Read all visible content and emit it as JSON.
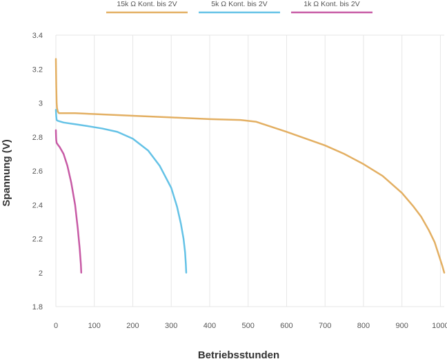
{
  "chart_data": {
    "type": "line",
    "xlabel": "Betriebsstunden",
    "ylabel": "Spannung (V)",
    "xlim": [
      0,
      1010
    ],
    "ylim": [
      1.8,
      3.4
    ],
    "x_ticks": [
      0,
      100,
      200,
      300,
      400,
      500,
      600,
      700,
      800,
      900,
      1000
    ],
    "y_ticks": [
      1.8,
      2,
      2.2,
      2.4,
      2.6,
      2.8,
      3,
      3.2,
      3.4
    ],
    "y_tick_labels": [
      "1.8",
      "2",
      "2.2",
      "2.4",
      "2.6",
      "2.8",
      "3",
      "3.2",
      "3.4"
    ],
    "grid": "vertical",
    "legend_position": "top",
    "series": [
      {
        "name": "15k Ω Kont. bis 2V",
        "color": "#E3AF62",
        "x": [
          0,
          1,
          2,
          3,
          5,
          8,
          20,
          50,
          100,
          200,
          300,
          400,
          480,
          520,
          560,
          600,
          650,
          700,
          750,
          800,
          850,
          900,
          930,
          950,
          970,
          985,
          995,
          1005,
          1010
        ],
        "y": [
          3.26,
          3.1,
          3.0,
          2.97,
          2.95,
          2.94,
          2.94,
          2.94,
          2.935,
          2.925,
          2.915,
          2.905,
          2.9,
          2.89,
          2.86,
          2.83,
          2.79,
          2.75,
          2.7,
          2.64,
          2.57,
          2.47,
          2.39,
          2.33,
          2.25,
          2.18,
          2.11,
          2.04,
          2.0
        ]
      },
      {
        "name": "5k Ω Kont. bis 2V",
        "color": "#64C2E6",
        "x": [
          0,
          1,
          2,
          5,
          20,
          50,
          80,
          120,
          160,
          200,
          240,
          270,
          300,
          315,
          325,
          332,
          336,
          338,
          339
        ],
        "y": [
          2.96,
          2.92,
          2.9,
          2.895,
          2.885,
          2.875,
          2.865,
          2.85,
          2.83,
          2.79,
          2.72,
          2.63,
          2.5,
          2.39,
          2.29,
          2.2,
          2.12,
          2.05,
          2.0
        ]
      },
      {
        "name": "1k Ω Kont. bis 2V",
        "color": "#C75AA5",
        "x": [
          0,
          0.5,
          1,
          2,
          5,
          10,
          20,
          30,
          40,
          50,
          57,
          62,
          65,
          66
        ],
        "y": [
          2.84,
          2.8,
          2.78,
          2.765,
          2.755,
          2.74,
          2.7,
          2.63,
          2.53,
          2.4,
          2.26,
          2.14,
          2.05,
          2.0
        ]
      }
    ]
  }
}
